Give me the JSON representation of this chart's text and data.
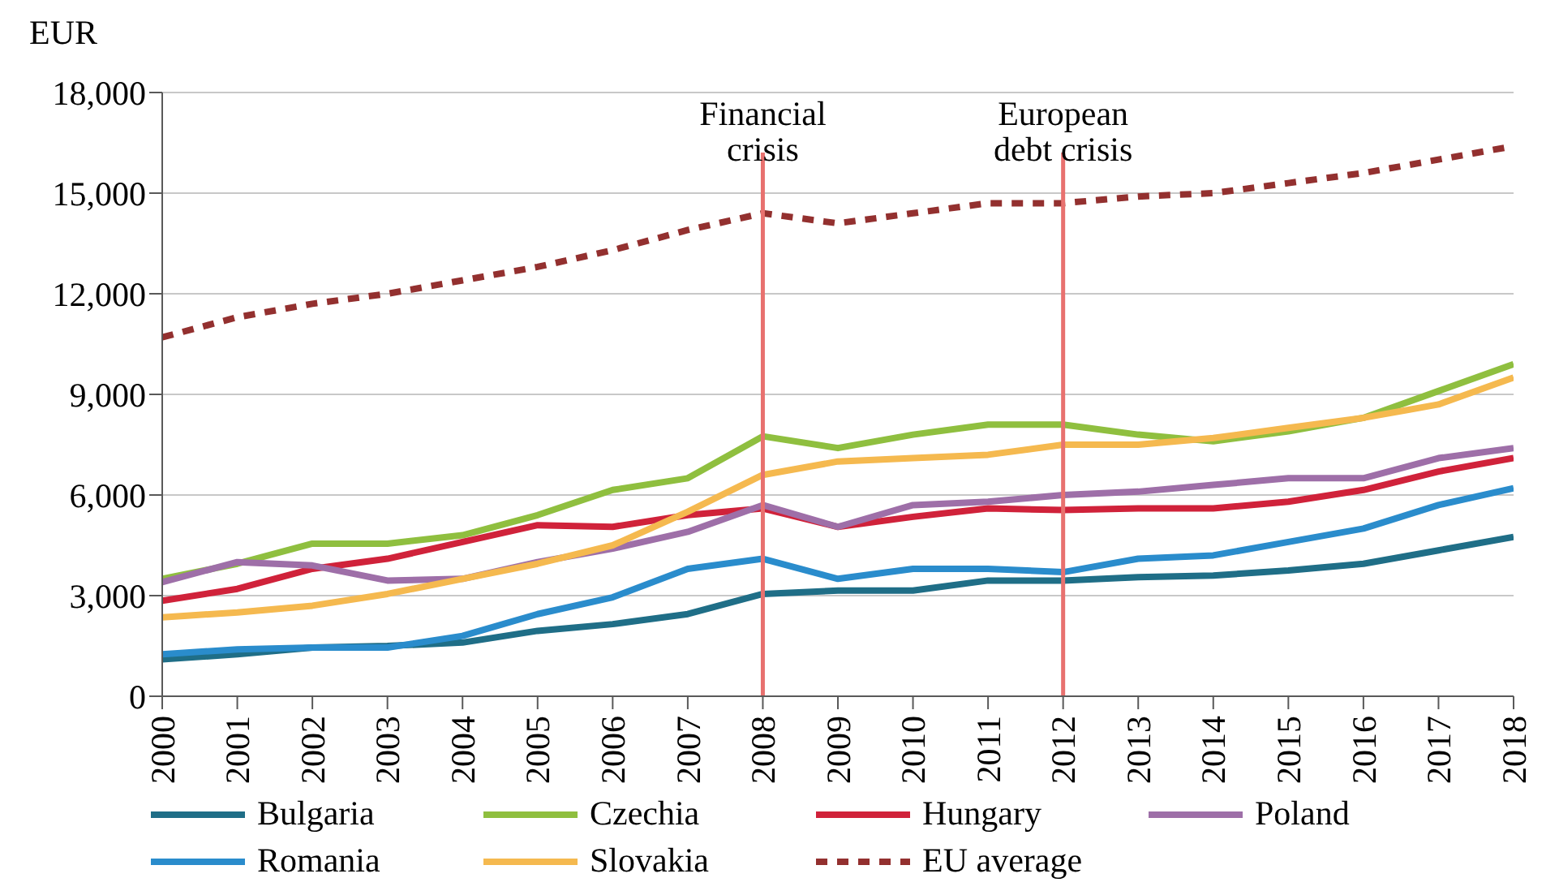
{
  "chart_data": {
    "type": "line",
    "ylabel": "EUR",
    "x": [
      2000,
      2001,
      2002,
      2003,
      2004,
      2005,
      2006,
      2007,
      2008,
      2009,
      2010,
      2011,
      2012,
      2013,
      2014,
      2015,
      2016,
      2017,
      2018
    ],
    "xlim": [
      2000,
      2018
    ],
    "xticks": [
      2000,
      2001,
      2002,
      2003,
      2004,
      2005,
      2006,
      2007,
      2008,
      2009,
      2010,
      2011,
      2012,
      2013,
      2014,
      2015,
      2016,
      2017,
      2018
    ],
    "ylim": [
      0,
      18000
    ],
    "yticks": [
      {
        "value": 0,
        "label": "0"
      },
      {
        "value": 3000,
        "label": "3,000"
      },
      {
        "value": 6000,
        "label": "6,000"
      },
      {
        "value": 9000,
        "label": "9,000"
      },
      {
        "value": 12000,
        "label": "12,000"
      },
      {
        "value": 15000,
        "label": "15,000"
      },
      {
        "value": 18000,
        "label": "18,000"
      }
    ],
    "grid": "y",
    "legend": "bottom",
    "marker": "none",
    "series": [
      {
        "name": "Bulgaria",
        "color": "#1f6e87",
        "values": [
          1100,
          1250,
          1450,
          1500,
          1600,
          1950,
          2150,
          2450,
          3050,
          3150,
          3150,
          3450,
          3450,
          3550,
          3600,
          3750,
          3950,
          4350,
          4750
        ]
      },
      {
        "name": "Czechia",
        "color": "#8fbf3f",
        "values": [
          3500,
          3950,
          4550,
          4550,
          4800,
          5400,
          6150,
          6500,
          7750,
          7400,
          7800,
          8100,
          8100,
          7800,
          7600,
          7900,
          8300,
          9100,
          9900
        ]
      },
      {
        "name": "Hungary",
        "color": "#d0223a",
        "values": [
          2850,
          3200,
          3800,
          4100,
          4600,
          5100,
          5050,
          5400,
          5600,
          5050,
          5350,
          5600,
          5550,
          5600,
          5600,
          5800,
          6150,
          6700,
          7100
        ]
      },
      {
        "name": "Poland",
        "color": "#9e6fa8",
        "values": [
          3400,
          4000,
          3900,
          3450,
          3500,
          4000,
          4400,
          4900,
          5700,
          5050,
          5700,
          5800,
          6000,
          6100,
          6300,
          6500,
          6500,
          7100,
          7400
        ]
      },
      {
        "name": "Romania",
        "color": "#2a8ccc",
        "values": [
          1250,
          1400,
          1450,
          1450,
          1800,
          2450,
          2950,
          3800,
          4100,
          3500,
          3800,
          3800,
          3700,
          4100,
          4200,
          4600,
          5000,
          5700,
          6200
        ]
      },
      {
        "name": "Slovakia",
        "color": "#f5b94f",
        "values": [
          2350,
          2500,
          2700,
          3050,
          3500,
          3950,
          4500,
          5500,
          6600,
          7000,
          7100,
          7200,
          7500,
          7500,
          7700,
          8000,
          8300,
          8700,
          9500
        ]
      },
      {
        "name": "EU average",
        "color": "#93302f",
        "line_style": "dashed",
        "values": [
          10700,
          11300,
          11700,
          12000,
          12400,
          12800,
          13300,
          13900,
          14400,
          14100,
          14400,
          14700,
          14700,
          14900,
          15000,
          15300,
          15600,
          16000,
          16400
        ]
      }
    ],
    "ref_lines": [
      {
        "axis": "x",
        "value": 2008,
        "label": "Financial crisis",
        "color": "#e8716f"
      },
      {
        "axis": "x",
        "value": 2012,
        "label": "European debt crisis",
        "color": "#e8716f"
      }
    ]
  }
}
